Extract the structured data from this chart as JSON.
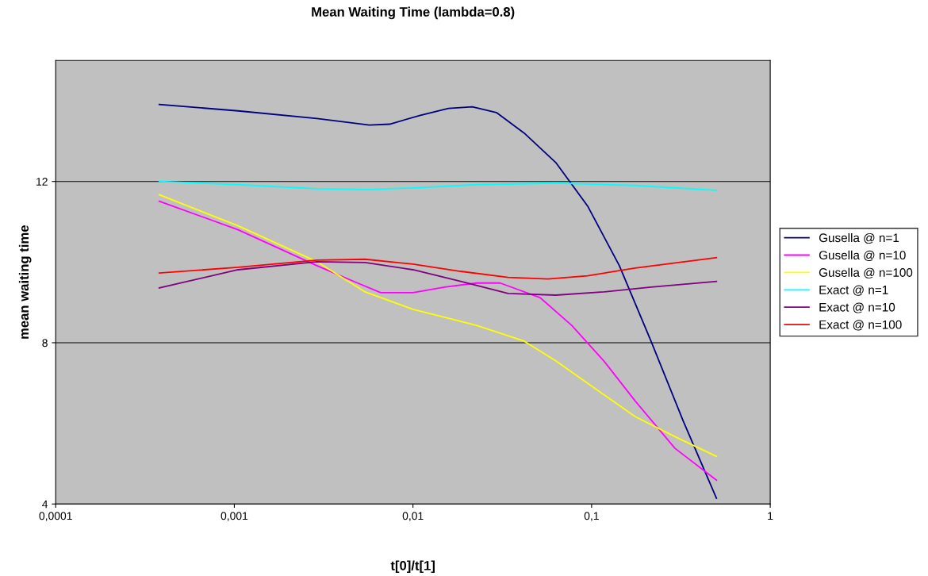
{
  "chart_data": {
    "type": "line",
    "title": "Mean Waiting Time (lambda=0.8)",
    "xlabel": "t[0]/t[1]",
    "ylabel": "mean waiting time",
    "log": "x",
    "grid": "y",
    "legend": "right",
    "marker": "none",
    "line_style": "solid",
    "xlim": [
      0.0001,
      1
    ],
    "xticks": [
      {
        "value": 0.0001,
        "label": "0,0001"
      },
      {
        "value": 0.001,
        "label": "0,001"
      },
      {
        "value": 0.01,
        "label": "0,01"
      },
      {
        "value": 0.1,
        "label": "0,1"
      },
      {
        "value": 1,
        "label": "1"
      }
    ],
    "ylim": [
      4,
      15
    ],
    "yticks": [
      4,
      8,
      12
    ],
    "series": [
      {
        "name": "Gusella @ n=1",
        "color": "#000080",
        "x": [
          0.00038,
          0.00105,
          0.0029,
          0.0057,
          0.0074,
          0.011,
          0.0158,
          0.0215,
          0.0293,
          0.0419,
          0.063,
          0.095,
          0.143,
          0.215,
          0.325,
          0.5
        ],
        "values": [
          13.91,
          13.75,
          13.56,
          13.4,
          13.42,
          13.64,
          13.81,
          13.85,
          13.71,
          13.2,
          12.47,
          11.39,
          9.91,
          8.04,
          6.07,
          4.14
        ]
      },
      {
        "name": "Gusella @ n=10",
        "color": "#ff00ff",
        "x": [
          0.00038,
          0.00105,
          0.0029,
          0.0049,
          0.0066,
          0.01,
          0.015,
          0.0227,
          0.0308,
          0.0514,
          0.0774,
          0.117,
          0.175,
          0.293,
          0.5
        ],
        "values": [
          11.51,
          10.8,
          9.91,
          9.48,
          9.24,
          9.24,
          9.38,
          9.48,
          9.48,
          9.12,
          8.43,
          7.55,
          6.56,
          5.38,
          4.59
        ]
      },
      {
        "name": "Gusella @ n=100",
        "color": "#ffff00",
        "x": [
          0.00038,
          0.00105,
          0.0029,
          0.0054,
          0.01,
          0.0227,
          0.0419,
          0.063,
          0.105,
          0.175,
          0.293,
          0.5
        ],
        "values": [
          11.67,
          10.9,
          10.01,
          9.26,
          8.83,
          8.43,
          8.04,
          7.55,
          6.86,
          6.17,
          5.67,
          5.18
        ]
      },
      {
        "name": "Exact @ n=1",
        "color": "#00ffff",
        "x": [
          0.00038,
          0.00105,
          0.0029,
          0.0057,
          0.01,
          0.0227,
          0.063,
          0.175,
          0.5
        ],
        "values": [
          12.0,
          11.92,
          11.82,
          11.8,
          11.84,
          11.92,
          11.96,
          11.9,
          11.78
        ]
      },
      {
        "name": "Exact @ n=10",
        "color": "#800080",
        "x": [
          0.00038,
          0.00105,
          0.0029,
          0.0054,
          0.01,
          0.0185,
          0.0341,
          0.063,
          0.117,
          0.215,
          0.5
        ],
        "values": [
          9.36,
          9.81,
          10.01,
          9.99,
          9.81,
          9.52,
          9.22,
          9.18,
          9.26,
          9.38,
          9.52
        ]
      },
      {
        "name": "Exact @ n=100",
        "color": "#ff0000",
        "x": [
          0.00038,
          0.00105,
          0.0029,
          0.0054,
          0.01,
          0.0185,
          0.0341,
          0.057,
          0.095,
          0.175,
          0.5
        ],
        "values": [
          9.73,
          9.87,
          10.05,
          10.07,
          9.95,
          9.77,
          9.62,
          9.58,
          9.66,
          9.85,
          10.11
        ]
      }
    ]
  }
}
